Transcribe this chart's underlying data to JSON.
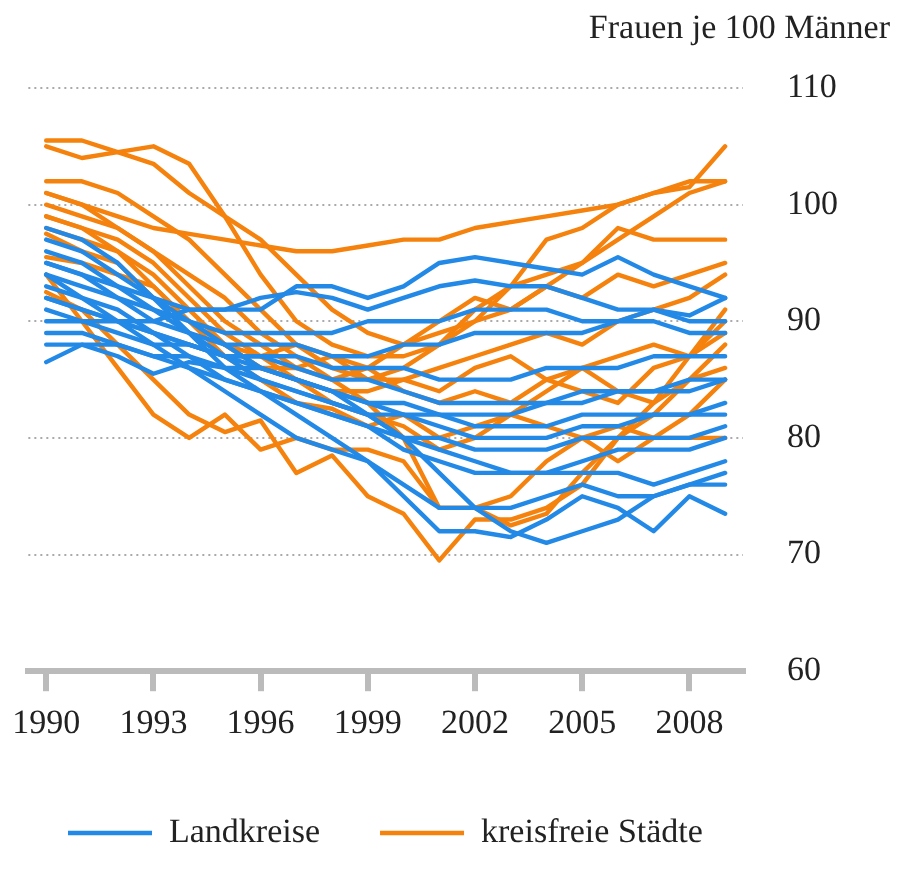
{
  "chart_data": {
    "type": "line",
    "ylabel": "Frauen je 100 Männer",
    "x": [
      1990,
      1991,
      1992,
      1993,
      1994,
      1995,
      1996,
      1997,
      1998,
      1999,
      2000,
      2001,
      2002,
      2003,
      2004,
      2005,
      2006,
      2007,
      2008,
      2009
    ],
    "xlim": [
      1989.5,
      2009.5
    ],
    "xticks": [
      1990,
      1993,
      1996,
      1999,
      2002,
      2005,
      2008
    ],
    "ylim": [
      60,
      110
    ],
    "yticks": [
      60,
      70,
      80,
      90,
      100,
      110
    ],
    "grid": "y",
    "legend": "bottom",
    "marker": "none",
    "line_style": "solid",
    "series": [
      {
        "name": "Landkreise",
        "color": "#2389e6",
        "values": [
          95,
          94,
          93,
          92,
          91,
          91,
          91,
          93,
          93,
          92,
          93,
          95,
          95.5,
          95,
          94.5,
          94,
          95.5,
          94,
          93,
          92
        ]
      },
      {
        "color": "#2389e6",
        "values": [
          92,
          91,
          90,
          90,
          91,
          91,
          92,
          92.5,
          92,
          91,
          92,
          93,
          93.5,
          93,
          93,
          92,
          91,
          91,
          90.5,
          92
        ]
      },
      {
        "color": "#2389e6",
        "values": [
          86.5,
          88,
          87,
          85.5,
          86.5,
          86,
          86,
          85,
          84,
          82,
          80,
          77,
          74,
          72,
          71,
          72,
          73,
          75,
          76,
          76
        ]
      },
      {
        "color": "#2389e6",
        "values": [
          94,
          92,
          90,
          88,
          86,
          84,
          82,
          80,
          79,
          78,
          75,
          72,
          72,
          71.5,
          73,
          75,
          74,
          72,
          75,
          73.5
        ]
      },
      {
        "color": "#2389e6",
        "values": [
          98,
          97,
          95,
          92,
          89,
          86,
          84,
          82,
          80,
          78,
          76,
          74,
          74,
          74,
          75,
          76,
          75,
          75,
          76,
          77
        ]
      },
      {
        "color": "#2389e6",
        "values": [
          96,
          95,
          93,
          91,
          89,
          87,
          85,
          84,
          83,
          82,
          80,
          79,
          78,
          77,
          77,
          78,
          79,
          79,
          79,
          80
        ]
      },
      {
        "color": "#2389e6",
        "values": [
          93,
          92,
          91,
          89,
          88,
          87,
          86,
          85,
          84,
          83,
          82,
          81,
          80,
          80,
          80,
          81,
          81,
          82,
          82,
          83
        ]
      },
      {
        "color": "#2389e6",
        "values": [
          91,
          90,
          90,
          89,
          88,
          87,
          87,
          86,
          85,
          85,
          84,
          83,
          83,
          83,
          83,
          84,
          84,
          84,
          85,
          85
        ]
      },
      {
        "color": "#2389e6",
        "values": [
          90,
          90,
          89,
          88,
          88,
          87,
          87,
          87,
          86,
          86,
          86,
          85,
          85,
          85,
          86,
          86,
          86,
          87,
          87,
          87
        ]
      },
      {
        "color": "#2389e6",
        "values": [
          95,
          94,
          92,
          90,
          89,
          88,
          88,
          88,
          87,
          87,
          88,
          88,
          89,
          89,
          89,
          89,
          90,
          90,
          89,
          89
        ]
      },
      {
        "color": "#2389e6",
        "values": [
          89,
          89,
          88,
          87,
          87,
          86,
          85,
          84,
          83,
          82,
          82,
          82,
          81,
          81,
          81,
          82,
          82,
          82,
          82,
          82
        ]
      },
      {
        "color": "#2389e6",
        "values": [
          92,
          91,
          90,
          89,
          87,
          85,
          84,
          83,
          82,
          81,
          80,
          80,
          79,
          79,
          79,
          80,
          80,
          80,
          80,
          81
        ]
      },
      {
        "color": "#2389e6",
        "values": [
          97,
          96,
          94,
          92,
          90,
          88,
          86,
          85,
          84,
          83,
          83,
          82,
          82,
          82,
          83,
          83,
          84,
          84,
          84,
          85
        ]
      },
      {
        "color": "#2389e6",
        "values": [
          88,
          88,
          88,
          87,
          86,
          85,
          84,
          83,
          82,
          81,
          79,
          78,
          77,
          77,
          77,
          77,
          77,
          76,
          77,
          78
        ]
      },
      {
        "color": "#2389e6",
        "values": [
          94,
          93,
          92,
          91,
          90,
          89,
          89,
          89,
          89,
          90,
          90,
          90,
          91,
          91,
          91,
          90,
          90,
          91,
          90,
          90
        ]
      },
      {
        "name": "kreisfreie Städte",
        "color": "#f5820d",
        "values": [
          105.5,
          105.5,
          104.5,
          103.5,
          101,
          99,
          97,
          94,
          91,
          89,
          88,
          89,
          90,
          91,
          93,
          95,
          97,
          99,
          101,
          102
        ]
      },
      {
        "color": "#f5820d",
        "values": [
          105,
          104,
          104.5,
          105,
          103.5,
          99,
          94,
          90,
          88,
          87,
          87,
          88,
          90,
          93,
          97,
          98,
          100,
          101,
          101.5,
          105
        ]
      },
      {
        "color": "#f5820d",
        "values": [
          101,
          100,
          99,
          98,
          97.5,
          97,
          96.5,
          96,
          96,
          96.5,
          97,
          97,
          98,
          98.5,
          99,
          99.5,
          100,
          101,
          102,
          102
        ]
      },
      {
        "color": "#f5820d",
        "values": [
          92.5,
          91,
          88,
          85,
          82,
          80.5,
          81.5,
          77,
          78.5,
          75,
          73.5,
          69.5,
          73,
          73,
          74,
          76,
          80,
          83,
          87,
          91
        ]
      },
      {
        "color": "#f5820d",
        "values": [
          94,
          90,
          86,
          82,
          80,
          82,
          79,
          80,
          79,
          79,
          78,
          74,
          74,
          72.5,
          73.5,
          77,
          80,
          82,
          85,
          86
        ]
      },
      {
        "color": "#f5820d",
        "values": [
          101,
          100,
          98,
          96,
          94,
          92,
          89,
          87,
          85,
          83,
          80,
          74,
          74,
          75,
          78,
          80,
          78,
          80,
          82,
          85
        ]
      },
      {
        "color": "#f5820d",
        "values": [
          102,
          102,
          101,
          99,
          97,
          94,
          91,
          88,
          86,
          85,
          86,
          88,
          91,
          93,
          94,
          95,
          98,
          97,
          97,
          97
        ]
      },
      {
        "color": "#f5820d",
        "values": [
          100,
          99,
          98,
          96,
          93,
          90,
          88,
          86,
          85,
          86,
          88,
          90,
          92,
          91,
          93,
          92,
          94,
          93,
          94,
          95
        ]
      },
      {
        "color": "#f5820d",
        "values": [
          99,
          98,
          97,
          95,
          92,
          89,
          87,
          85,
          84,
          84,
          85,
          86,
          87,
          88,
          89,
          88,
          90,
          91,
          92,
          94
        ]
      },
      {
        "color": "#f5820d",
        "values": [
          98,
          97,
          96,
          94,
          91,
          88,
          86,
          85,
          83,
          82,
          81,
          79,
          80,
          82,
          84,
          86,
          84,
          83,
          85,
          88
        ]
      },
      {
        "color": "#f5820d",
        "values": [
          97.5,
          96,
          95,
          92,
          90,
          88,
          86,
          86,
          87,
          86,
          84,
          83,
          84,
          83,
          85,
          84,
          83,
          86,
          87,
          90
        ]
      },
      {
        "color": "#f5820d",
        "values": [
          95.5,
          95,
          94,
          93,
          90,
          87,
          85,
          83,
          82.5,
          81,
          82,
          80,
          81,
          82,
          81,
          80,
          81,
          80,
          80,
          80
        ]
      },
      {
        "color": "#f5820d",
        "values": [
          99,
          98,
          96,
          93,
          90,
          88,
          87,
          88,
          87,
          85,
          85,
          84,
          86,
          87,
          85,
          86,
          87,
          88,
          87,
          89
        ]
      }
    ]
  }
}
